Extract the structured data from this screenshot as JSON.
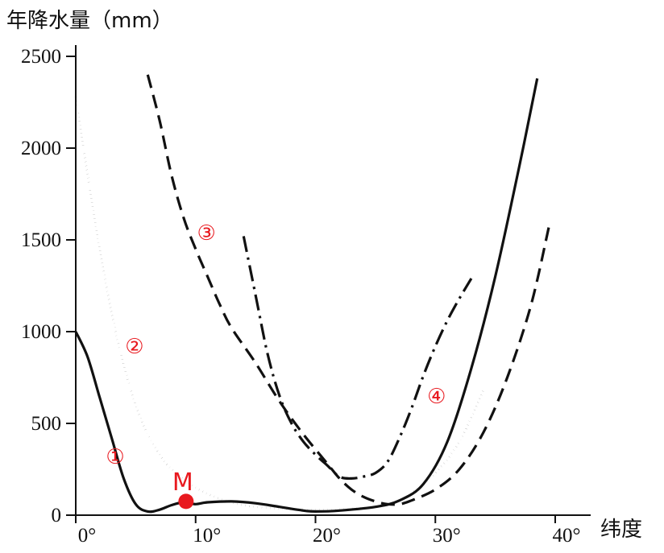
{
  "chart_data": {
    "type": "line",
    "ylabel": "年降水量（mm）",
    "xlabel": "纬度",
    "xlim": [
      0,
      40
    ],
    "ylim": [
      0,
      2500
    ],
    "x_ticks": [
      0,
      10,
      20,
      30,
      40
    ],
    "x_tick_labels": [
      "0°",
      "10°",
      "20°",
      "30°",
      "40°"
    ],
    "y_ticks": [
      0,
      500,
      1000,
      1500,
      2000,
      2500
    ],
    "y_tick_labels": [
      "0",
      "500",
      "1000",
      "1500",
      "2000",
      "2500"
    ],
    "grid": false,
    "legend": "none",
    "series": [
      {
        "name": "①",
        "style": "solid",
        "points": [
          [
            0,
            1000
          ],
          [
            1,
            860
          ],
          [
            2,
            640
          ],
          [
            3,
            420
          ],
          [
            4,
            200
          ],
          [
            5,
            60
          ],
          [
            6,
            20
          ],
          [
            7,
            30
          ],
          [
            8,
            55
          ],
          [
            9,
            70
          ],
          [
            10,
            60
          ],
          [
            11,
            70
          ],
          [
            13,
            75
          ],
          [
            15,
            65
          ],
          [
            17,
            45
          ],
          [
            19,
            25
          ],
          [
            20,
            20
          ],
          [
            22,
            25
          ],
          [
            25,
            45
          ],
          [
            27,
            80
          ],
          [
            29,
            170
          ],
          [
            31,
            400
          ],
          [
            33,
            800
          ],
          [
            35,
            1300
          ],
          [
            37,
            1900
          ],
          [
            38.5,
            2380
          ]
        ]
      },
      {
        "name": "②",
        "style": "dotted",
        "points": [
          [
            0,
            2280
          ],
          [
            1,
            1850
          ],
          [
            2,
            1450
          ],
          [
            3,
            1100
          ],
          [
            4,
            820
          ],
          [
            5,
            600
          ],
          [
            6,
            440
          ],
          [
            7,
            330
          ],
          [
            8,
            250
          ],
          [
            10,
            150
          ],
          [
            12,
            90
          ],
          [
            14,
            55
          ],
          [
            17,
            35
          ],
          [
            20,
            30
          ],
          [
            23,
            35
          ],
          [
            26,
            55
          ],
          [
            28,
            120
          ],
          [
            30,
            230
          ],
          [
            32,
            400
          ],
          [
            34,
            680
          ]
        ]
      },
      {
        "name": "③",
        "style": "dashed",
        "points": [
          [
            6,
            2400
          ],
          [
            7,
            2150
          ],
          [
            8,
            1850
          ],
          [
            9,
            1620
          ],
          [
            10,
            1450
          ],
          [
            11,
            1300
          ],
          [
            12,
            1150
          ],
          [
            13,
            1020
          ],
          [
            15,
            830
          ],
          [
            17,
            620
          ],
          [
            19,
            440
          ],
          [
            21,
            280
          ],
          [
            22,
            200
          ],
          [
            23,
            140
          ],
          [
            24,
            100
          ],
          [
            25,
            75
          ],
          [
            26,
            60
          ],
          [
            27,
            60
          ],
          [
            28,
            80
          ],
          [
            30,
            140
          ],
          [
            32,
            250
          ],
          [
            34,
            450
          ],
          [
            36,
            750
          ],
          [
            38,
            1150
          ],
          [
            39.5,
            1580
          ]
        ]
      },
      {
        "name": "④",
        "style": "dashdot",
        "points": [
          [
            14,
            1520
          ],
          [
            15,
            1200
          ],
          [
            16,
            880
          ],
          [
            17,
            650
          ],
          [
            18,
            500
          ],
          [
            19,
            400
          ],
          [
            20,
            330
          ],
          [
            21,
            270
          ],
          [
            22,
            210
          ],
          [
            23,
            200
          ],
          [
            24,
            210
          ],
          [
            25,
            230
          ],
          [
            26,
            290
          ],
          [
            27,
            420
          ],
          [
            28,
            580
          ],
          [
            29,
            760
          ],
          [
            30,
            920
          ],
          [
            31,
            1060
          ],
          [
            32,
            1180
          ],
          [
            33,
            1290
          ]
        ]
      }
    ],
    "annotations": [
      {
        "text": "①",
        "x": 3.3,
        "y": 320,
        "color": "#e8191f"
      },
      {
        "text": "②",
        "x": 4.9,
        "y": 920,
        "color": "#e8191f"
      },
      {
        "text": "③",
        "x": 10.9,
        "y": 1540,
        "color": "#e8191f"
      },
      {
        "text": "④",
        "x": 30.1,
        "y": 650,
        "color": "#e8191f"
      }
    ],
    "points": [
      {
        "label": "M",
        "x": 9.2,
        "y": 75,
        "color": "#e8191f"
      }
    ]
  }
}
